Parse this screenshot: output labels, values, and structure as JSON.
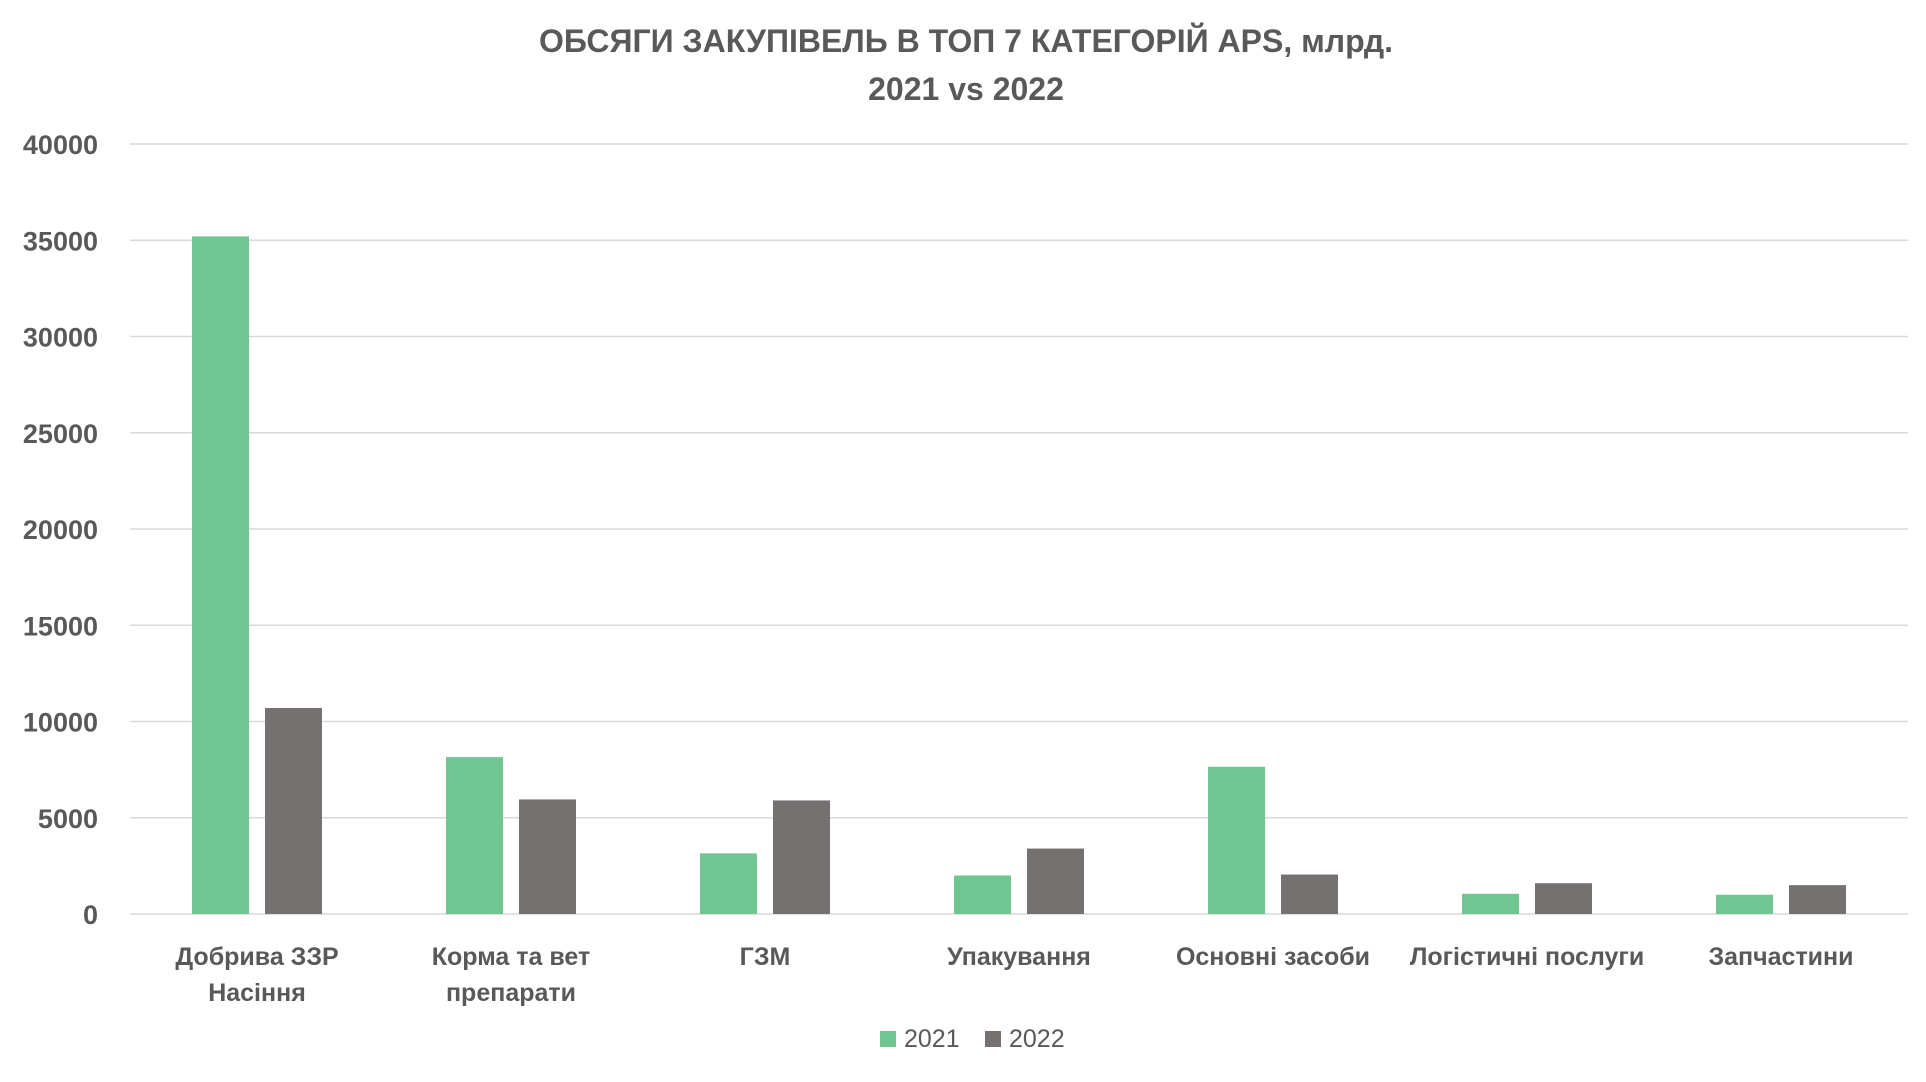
{
  "chart_data": {
    "type": "bar",
    "title": [
      "ОБСЯГИ ЗАКУПІВЕЛЬ В ТОП 7 КАТЕГОРІЙ APS, млрд.",
      "2021 vs 2022"
    ],
    "categories": [
      [
        "Добрива ЗЗР",
        "Насіння"
      ],
      [
        "Корма та вет",
        "препарати"
      ],
      [
        "ГЗМ"
      ],
      [
        "Упакування"
      ],
      [
        "Основні засоби"
      ],
      [
        "Логістичні послуги"
      ],
      [
        "Запчастини"
      ]
    ],
    "series": [
      {
        "name": "2021",
        "color": "#6fc691",
        "values": [
          35200,
          8150,
          3150,
          2000,
          7650,
          1050,
          1000
        ]
      },
      {
        "name": "2022",
        "color": "#767171",
        "values": [
          10700,
          5950,
          5900,
          3400,
          2050,
          1600,
          1500
        ]
      }
    ],
    "ylim": [
      0,
      40000
    ],
    "yticks": [
      0,
      5000,
      10000,
      15000,
      20000,
      25000,
      30000,
      35000,
      40000
    ],
    "grid": true,
    "legend_position": "bottom-center"
  }
}
